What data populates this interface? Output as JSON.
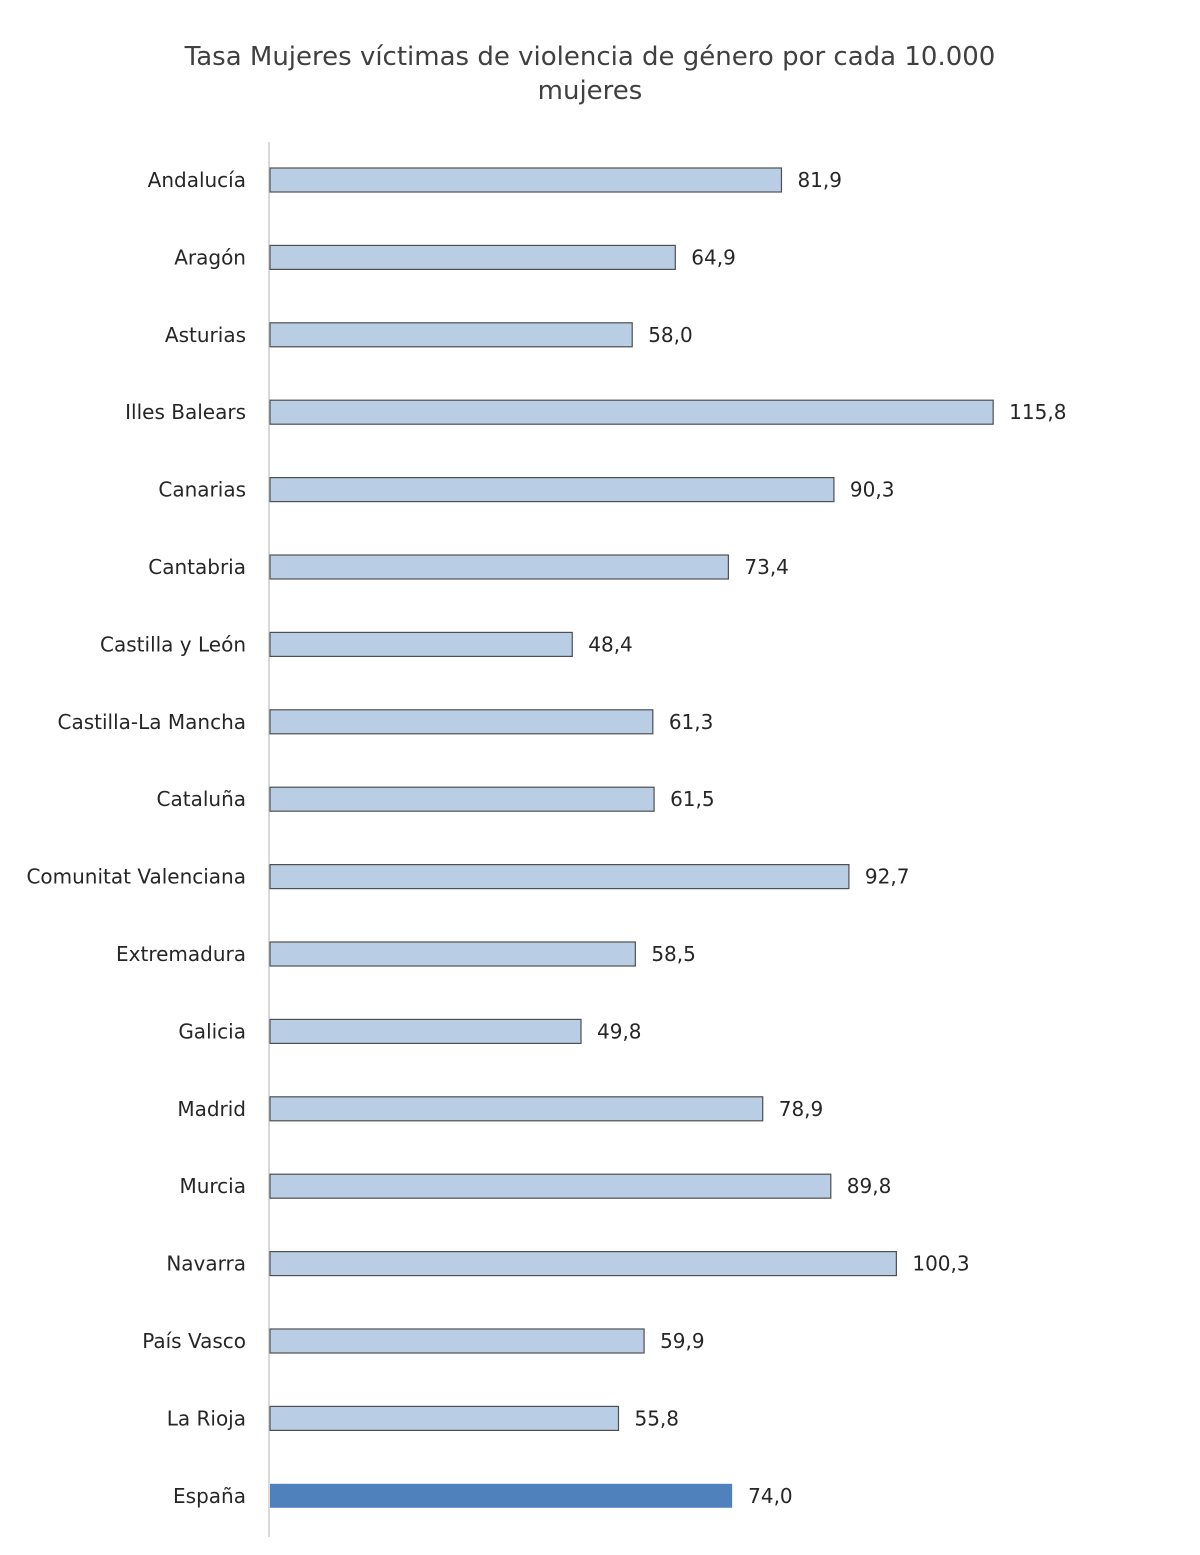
{
  "chart_data": {
    "type": "bar",
    "orientation": "horizontal",
    "title": "Tasa Mujeres víctimas de violencia de género por cada 10.000 mujeres",
    "categories": [
      "Andalucía",
      "Aragón",
      "Asturias",
      "Illes Balears",
      "Canarias",
      "Cantabria",
      "Castilla y León",
      "Castilla-La Mancha",
      "Cataluña",
      "Comunitat Valenciana",
      "Extremadura",
      "Galicia",
      "Madrid",
      "Murcia",
      "Navarra",
      "País Vasco",
      "La Rioja",
      "España"
    ],
    "values": [
      81.9,
      64.9,
      58.0,
      115.8,
      90.3,
      73.4,
      48.4,
      61.3,
      61.5,
      92.7,
      58.5,
      49.8,
      78.9,
      89.8,
      100.3,
      59.9,
      55.8,
      74.0
    ],
    "value_labels": [
      "81,9",
      "64,9",
      "58,0",
      "115,8",
      "90,3",
      "73,4",
      "48,4",
      "61,3",
      "61,5",
      "92,7",
      "58,5",
      "49,8",
      "78,9",
      "89,8",
      "100,3",
      "59,9",
      "55,8",
      "74,0"
    ],
    "highlight": "España",
    "colors": {
      "bar": "#b9cde5",
      "bar_border": "#4f4f4f",
      "highlight": "#4f81bd",
      "axis": "#d9d9d9"
    },
    "xlim": [
      0,
      120
    ],
    "grid": false,
    "legend": "none"
  }
}
